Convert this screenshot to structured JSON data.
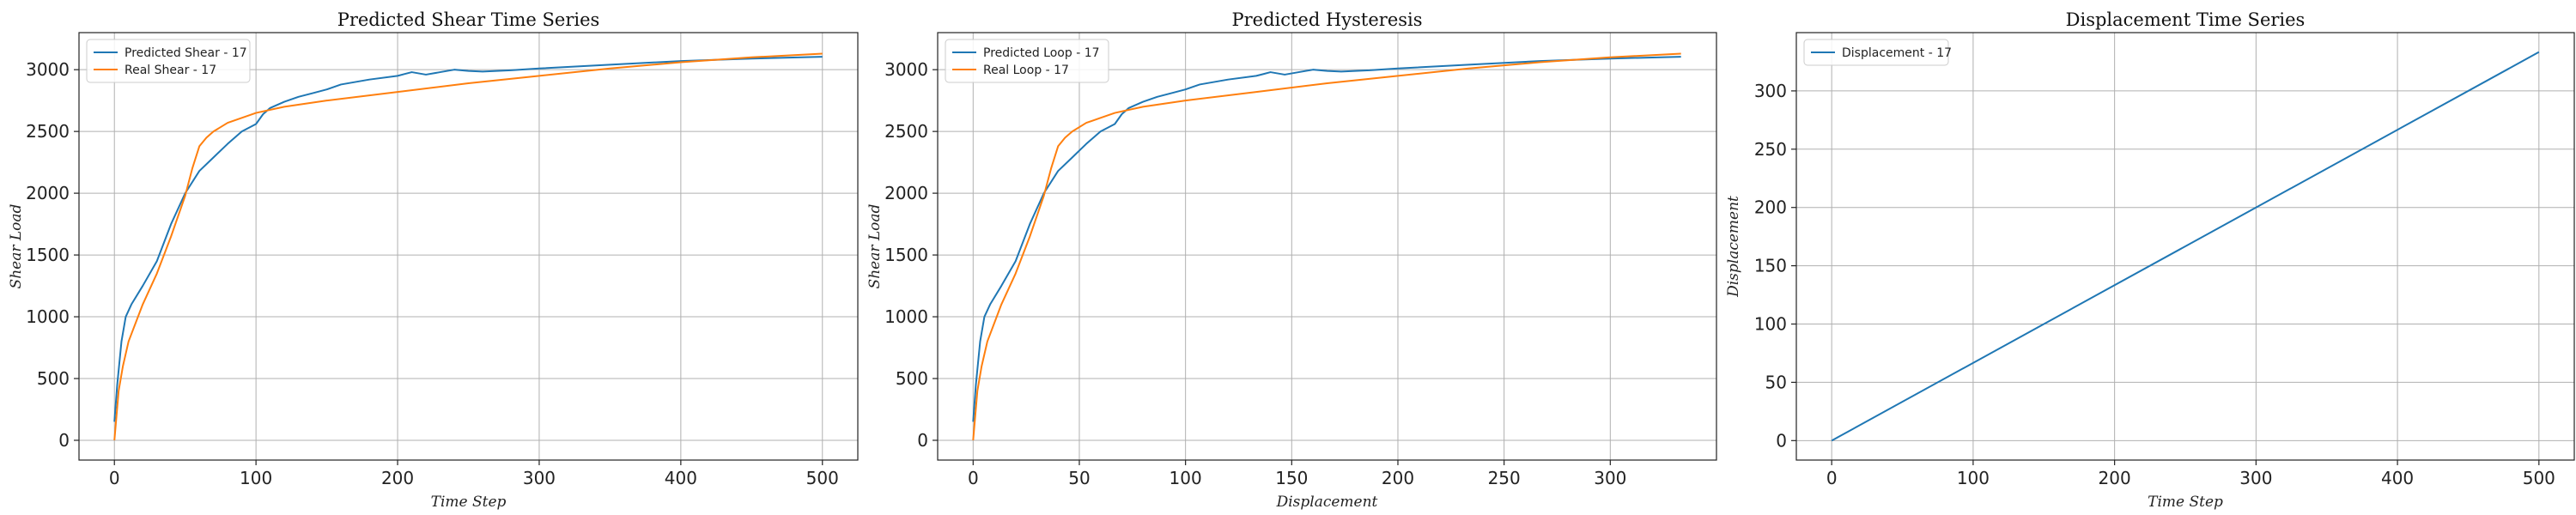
{
  "chart_data": [
    {
      "type": "line",
      "title": "Predicted Shear Time Series",
      "xlabel": "Time Step",
      "ylabel": "Shear Load",
      "xlim": [
        -25,
        525
      ],
      "ylim": [
        -160,
        3300
      ],
      "xticks": [
        0,
        100,
        200,
        300,
        400,
        500
      ],
      "yticks": [
        0,
        500,
        1000,
        1500,
        2000,
        2500,
        3000
      ],
      "grid": true,
      "legend_position": "top-left",
      "series": [
        {
          "name": "Predicted Shear - 17",
          "color": "#1f77b4",
          "x": [
            0,
            2,
            5,
            8,
            12,
            20,
            30,
            40,
            50,
            60,
            70,
            80,
            90,
            100,
            105,
            110,
            120,
            130,
            140,
            150,
            155,
            160,
            180,
            200,
            205,
            210,
            220,
            230,
            240,
            250,
            260,
            280,
            300,
            350,
            400,
            450,
            500
          ],
          "y": [
            150,
            450,
            800,
            1000,
            1100,
            1250,
            1450,
            1750,
            2000,
            2180,
            2290,
            2400,
            2500,
            2560,
            2640,
            2690,
            2740,
            2780,
            2810,
            2840,
            2860,
            2880,
            2920,
            2950,
            2965,
            2980,
            2960,
            2980,
            3000,
            2990,
            2985,
            2995,
            3010,
            3040,
            3070,
            3090,
            3105
          ]
        },
        {
          "name": "Real Shear - 17",
          "color": "#ff7f0e",
          "x": [
            0,
            3,
            6,
            10,
            15,
            20,
            30,
            40,
            50,
            55,
            60,
            65,
            70,
            80,
            90,
            100,
            120,
            150,
            200,
            250,
            300,
            350,
            400,
            450,
            500
          ],
          "y": [
            0,
            400,
            600,
            800,
            950,
            1100,
            1350,
            1650,
            1980,
            2200,
            2380,
            2450,
            2500,
            2570,
            2610,
            2650,
            2700,
            2750,
            2820,
            2890,
            2950,
            3010,
            3060,
            3100,
            3130
          ]
        }
      ]
    },
    {
      "type": "line",
      "title": "Predicted Hysteresis",
      "xlabel": "Displacement",
      "ylabel": "Shear Load",
      "xlim": [
        -16.7,
        350
      ],
      "ylim": [
        -160,
        3300
      ],
      "xticks": [
        0,
        50,
        100,
        150,
        200,
        250,
        300
      ],
      "yticks": [
        0,
        500,
        1000,
        1500,
        2000,
        2500,
        3000
      ],
      "grid": true,
      "legend_position": "top-left",
      "series": [
        {
          "name": "Predicted Loop - 17",
          "color": "#1f77b4",
          "x": [
            0,
            1.3,
            3.3,
            5.3,
            8,
            13.3,
            20,
            26.7,
            33.3,
            40,
            46.7,
            53.3,
            60,
            66.7,
            70,
            73.3,
            80,
            86.7,
            93.3,
            100,
            103.3,
            106.7,
            120,
            133.3,
            136.7,
            140,
            146.7,
            153.3,
            160,
            166.7,
            173.3,
            186.7,
            200,
            233.3,
            266.7,
            300,
            333.3
          ],
          "y": [
            150,
            450,
            800,
            1000,
            1100,
            1250,
            1450,
            1750,
            2000,
            2180,
            2290,
            2400,
            2500,
            2560,
            2640,
            2690,
            2740,
            2780,
            2810,
            2840,
            2860,
            2880,
            2920,
            2950,
            2965,
            2980,
            2960,
            2980,
            3000,
            2990,
            2985,
            2995,
            3010,
            3040,
            3070,
            3090,
            3105
          ]
        },
        {
          "name": "Real Loop - 17",
          "color": "#ff7f0e",
          "x": [
            0,
            2,
            4,
            6.7,
            10,
            13.3,
            20,
            26.7,
            33.3,
            36.7,
            40,
            43.3,
            46.7,
            53.3,
            60,
            66.7,
            80,
            100,
            133.3,
            166.7,
            200,
            233.3,
            266.7,
            300,
            333.3
          ],
          "y": [
            0,
            400,
            600,
            800,
            950,
            1100,
            1350,
            1650,
            1980,
            2200,
            2380,
            2450,
            2500,
            2570,
            2610,
            2650,
            2700,
            2750,
            2820,
            2890,
            2950,
            3010,
            3060,
            3100,
            3130
          ]
        }
      ]
    },
    {
      "type": "line",
      "title": "Displacement Time Series",
      "xlabel": "Time Step",
      "ylabel": "Displacement",
      "xlim": [
        -25,
        525
      ],
      "ylim": [
        -16.7,
        350
      ],
      "xticks": [
        0,
        100,
        200,
        300,
        400,
        500
      ],
      "yticks": [
        0,
        50,
        100,
        150,
        200,
        250,
        300
      ],
      "grid": true,
      "legend_position": "top-left",
      "series": [
        {
          "name": "Displacement - 17",
          "color": "#1f77b4",
          "x": [
            0,
            500
          ],
          "y": [
            0,
            333.3
          ]
        }
      ]
    }
  ]
}
